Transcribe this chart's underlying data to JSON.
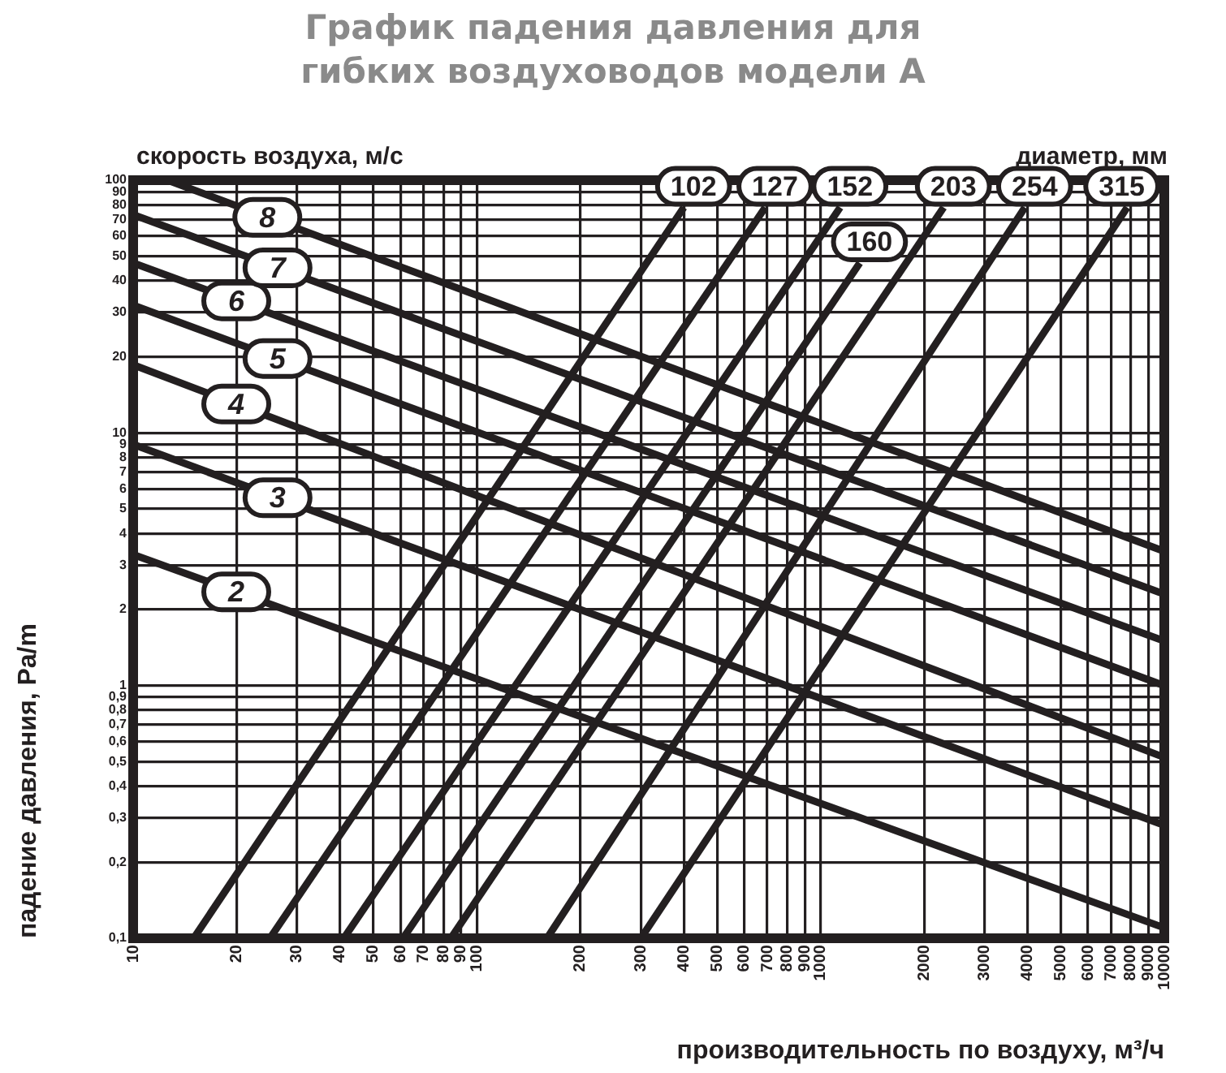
{
  "chart_data": {
    "type": "line",
    "title": "График падения давления для гибких воздуховодов модели A",
    "xlabel": "производительность по воздуху, м³/ч",
    "ylabel": "падение давления, Pa/m",
    "annotations": [
      "скорость воздуха, м/с",
      "диаметр, мм"
    ],
    "log": "xy",
    "grid": true,
    "legend": "top right",
    "marker": "none",
    "line_style": "solid",
    "xlim": [
      10,
      10000
    ],
    "ylim": [
      0.1,
      100
    ],
    "xticks": [
      10,
      20,
      30,
      40,
      50,
      60,
      70,
      80,
      90,
      100,
      200,
      300,
      400,
      500,
      600,
      700,
      800,
      900,
      1000,
      2000,
      3000,
      4000,
      5000,
      6000,
      7000,
      8000,
      9000,
      10000
    ],
    "yticks": [
      {
        "value": 0.1,
        "label": "0,1"
      },
      {
        "value": 0.2,
        "label": "0,2"
      },
      {
        "value": 0.3,
        "label": "0,3"
      },
      {
        "value": 0.4,
        "label": "0,4"
      },
      {
        "value": 0.5,
        "label": "0,5"
      },
      {
        "value": 0.6,
        "label": "0,6"
      },
      {
        "value": 0.7,
        "label": "0,7"
      },
      {
        "value": 0.8,
        "label": "0,8"
      },
      {
        "value": 0.9,
        "label": "0,9"
      },
      1,
      2,
      3,
      4,
      5,
      6,
      7,
      8,
      9,
      10,
      20,
      30,
      40,
      50,
      60,
      70,
      80,
      90,
      100
    ],
    "series": [
      {
        "name": "2",
        "color": "#231f20",
        "x": [
          10,
          10000
        ],
        "values": [
          3.3,
          0.11
        ]
      },
      {
        "name": "3",
        "color": "#231f20",
        "x": [
          10,
          10000
        ],
        "values": [
          9,
          0.28
        ]
      },
      {
        "name": "4",
        "color": "#231f20",
        "x": [
          10,
          10000
        ],
        "values": [
          18.6,
          0.52
        ]
      },
      {
        "name": "5",
        "color": "#231f20",
        "x": [
          10,
          10000
        ],
        "values": [
          32,
          1
        ]
      },
      {
        "name": "6",
        "color": "#231f20",
        "x": [
          10,
          10000
        ],
        "values": [
          47,
          1.5
        ]
      },
      {
        "name": "7",
        "color": "#231f20",
        "x": [
          10,
          10000
        ],
        "values": [
          73,
          2.3
        ]
      },
      {
        "name": "8",
        "color": "#231f20",
        "x": [
          12.6,
          10000
        ],
        "values": [
          100,
          3.4
        ]
      },
      {
        "name": "102",
        "color": "#231f20",
        "x": [
          15,
          400
        ],
        "values": [
          0.1,
          78
        ]
      },
      {
        "name": "127",
        "color": "#231f20",
        "x": [
          25,
          690
        ],
        "values": [
          0.1,
          78
        ]
      },
      {
        "name": "152",
        "color": "#231f20",
        "x": [
          41,
          1140
        ],
        "values": [
          0.1,
          78
        ]
      },
      {
        "name": "160",
        "color": "#231f20",
        "x": [
          61,
          1300
        ],
        "values": [
          0.1,
          47
        ]
      },
      {
        "name": "203",
        "color": "#231f20",
        "x": [
          84,
          2280
        ],
        "values": [
          0.1,
          78
        ]
      },
      {
        "name": "254",
        "color": "#231f20",
        "x": [
          160,
          3930
        ],
        "values": [
          0.1,
          78
        ]
      },
      {
        "name": "315",
        "color": "#231f20",
        "x": [
          300,
          7800
        ],
        "values": [
          0.1,
          78
        ]
      }
    ]
  }
}
